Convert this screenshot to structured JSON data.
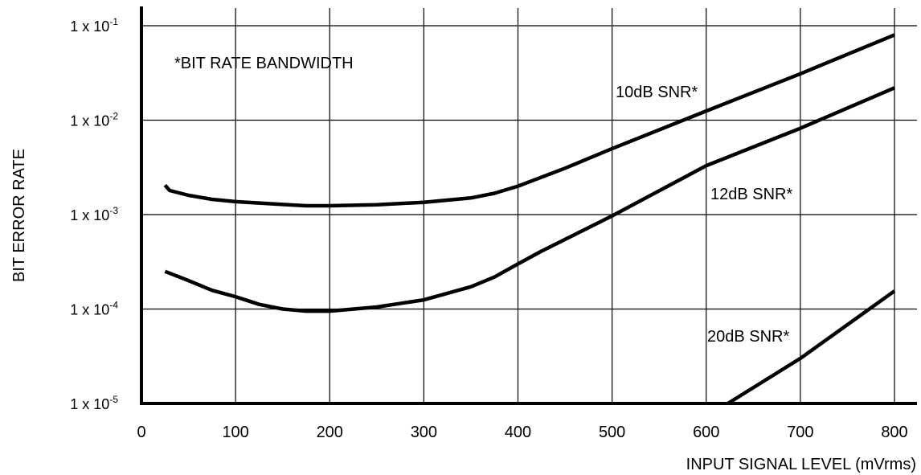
{
  "chart_data": {
    "type": "line",
    "title": "",
    "xlabel": "INPUT SIGNAL LEVEL (mVrms)",
    "ylabel": "BIT ERROR RATE",
    "xlim": [
      0,
      800
    ],
    "ylim": [
      1e-05,
      0.1
    ],
    "yscale": "log",
    "grid": true,
    "x_ticks": [
      0,
      100,
      200,
      300,
      400,
      500,
      600,
      700,
      800
    ],
    "x_tick_labels": [
      "0",
      "100",
      "200",
      "300",
      "400",
      "500",
      "600",
      "700",
      "800"
    ],
    "y_ticks": [
      0.1,
      0.01,
      0.001,
      0.0001,
      1e-05
    ],
    "y_tick_labels": [
      {
        "base": "1 x 10",
        "exp": "-1"
      },
      {
        "base": "1 x 10",
        "exp": "-2"
      },
      {
        "base": "1 x 10",
        "exp": "-3"
      },
      {
        "base": "1 x 10",
        "exp": "-4"
      },
      {
        "base": "1 x 10",
        "exp": "-5"
      }
    ],
    "annotation": "*BIT RATE BANDWIDTH",
    "series": [
      {
        "name": "10dB SNR*",
        "points": [
          [
            25,
            0.00205
          ],
          [
            30,
            0.0018
          ],
          [
            50,
            0.0016
          ],
          [
            75,
            0.00145
          ],
          [
            100,
            0.00137
          ],
          [
            150,
            0.00128
          ],
          [
            175,
            0.00124
          ],
          [
            200,
            0.00124
          ],
          [
            250,
            0.00127
          ],
          [
            300,
            0.00135
          ],
          [
            350,
            0.0015
          ],
          [
            375,
            0.00168
          ],
          [
            400,
            0.002
          ],
          [
            450,
            0.0031
          ],
          [
            500,
            0.005
          ],
          [
            600,
            0.0125
          ],
          [
            700,
            0.031
          ],
          [
            800,
            0.08
          ]
        ]
      },
      {
        "name": "12dB SNR*",
        "points": [
          [
            25,
            0.00025
          ],
          [
            50,
            0.0002
          ],
          [
            75,
            0.000158
          ],
          [
            100,
            0.000135
          ],
          [
            125,
            0.000112
          ],
          [
            150,
            0.0001
          ],
          [
            175,
            9.5e-05
          ],
          [
            200,
            9.5e-05
          ],
          [
            250,
            0.000105
          ],
          [
            300,
            0.000125
          ],
          [
            350,
            0.000172
          ],
          [
            375,
            0.000218
          ],
          [
            400,
            0.0003
          ],
          [
            425,
            0.00041
          ],
          [
            500,
            0.00097
          ],
          [
            600,
            0.0033
          ],
          [
            700,
            0.0082
          ],
          [
            800,
            0.022
          ]
        ]
      },
      {
        "name": "20dB SNR*",
        "points": [
          [
            623,
            1e-05
          ],
          [
            700,
            3e-05
          ],
          [
            800,
            0.000155
          ]
        ]
      }
    ]
  }
}
